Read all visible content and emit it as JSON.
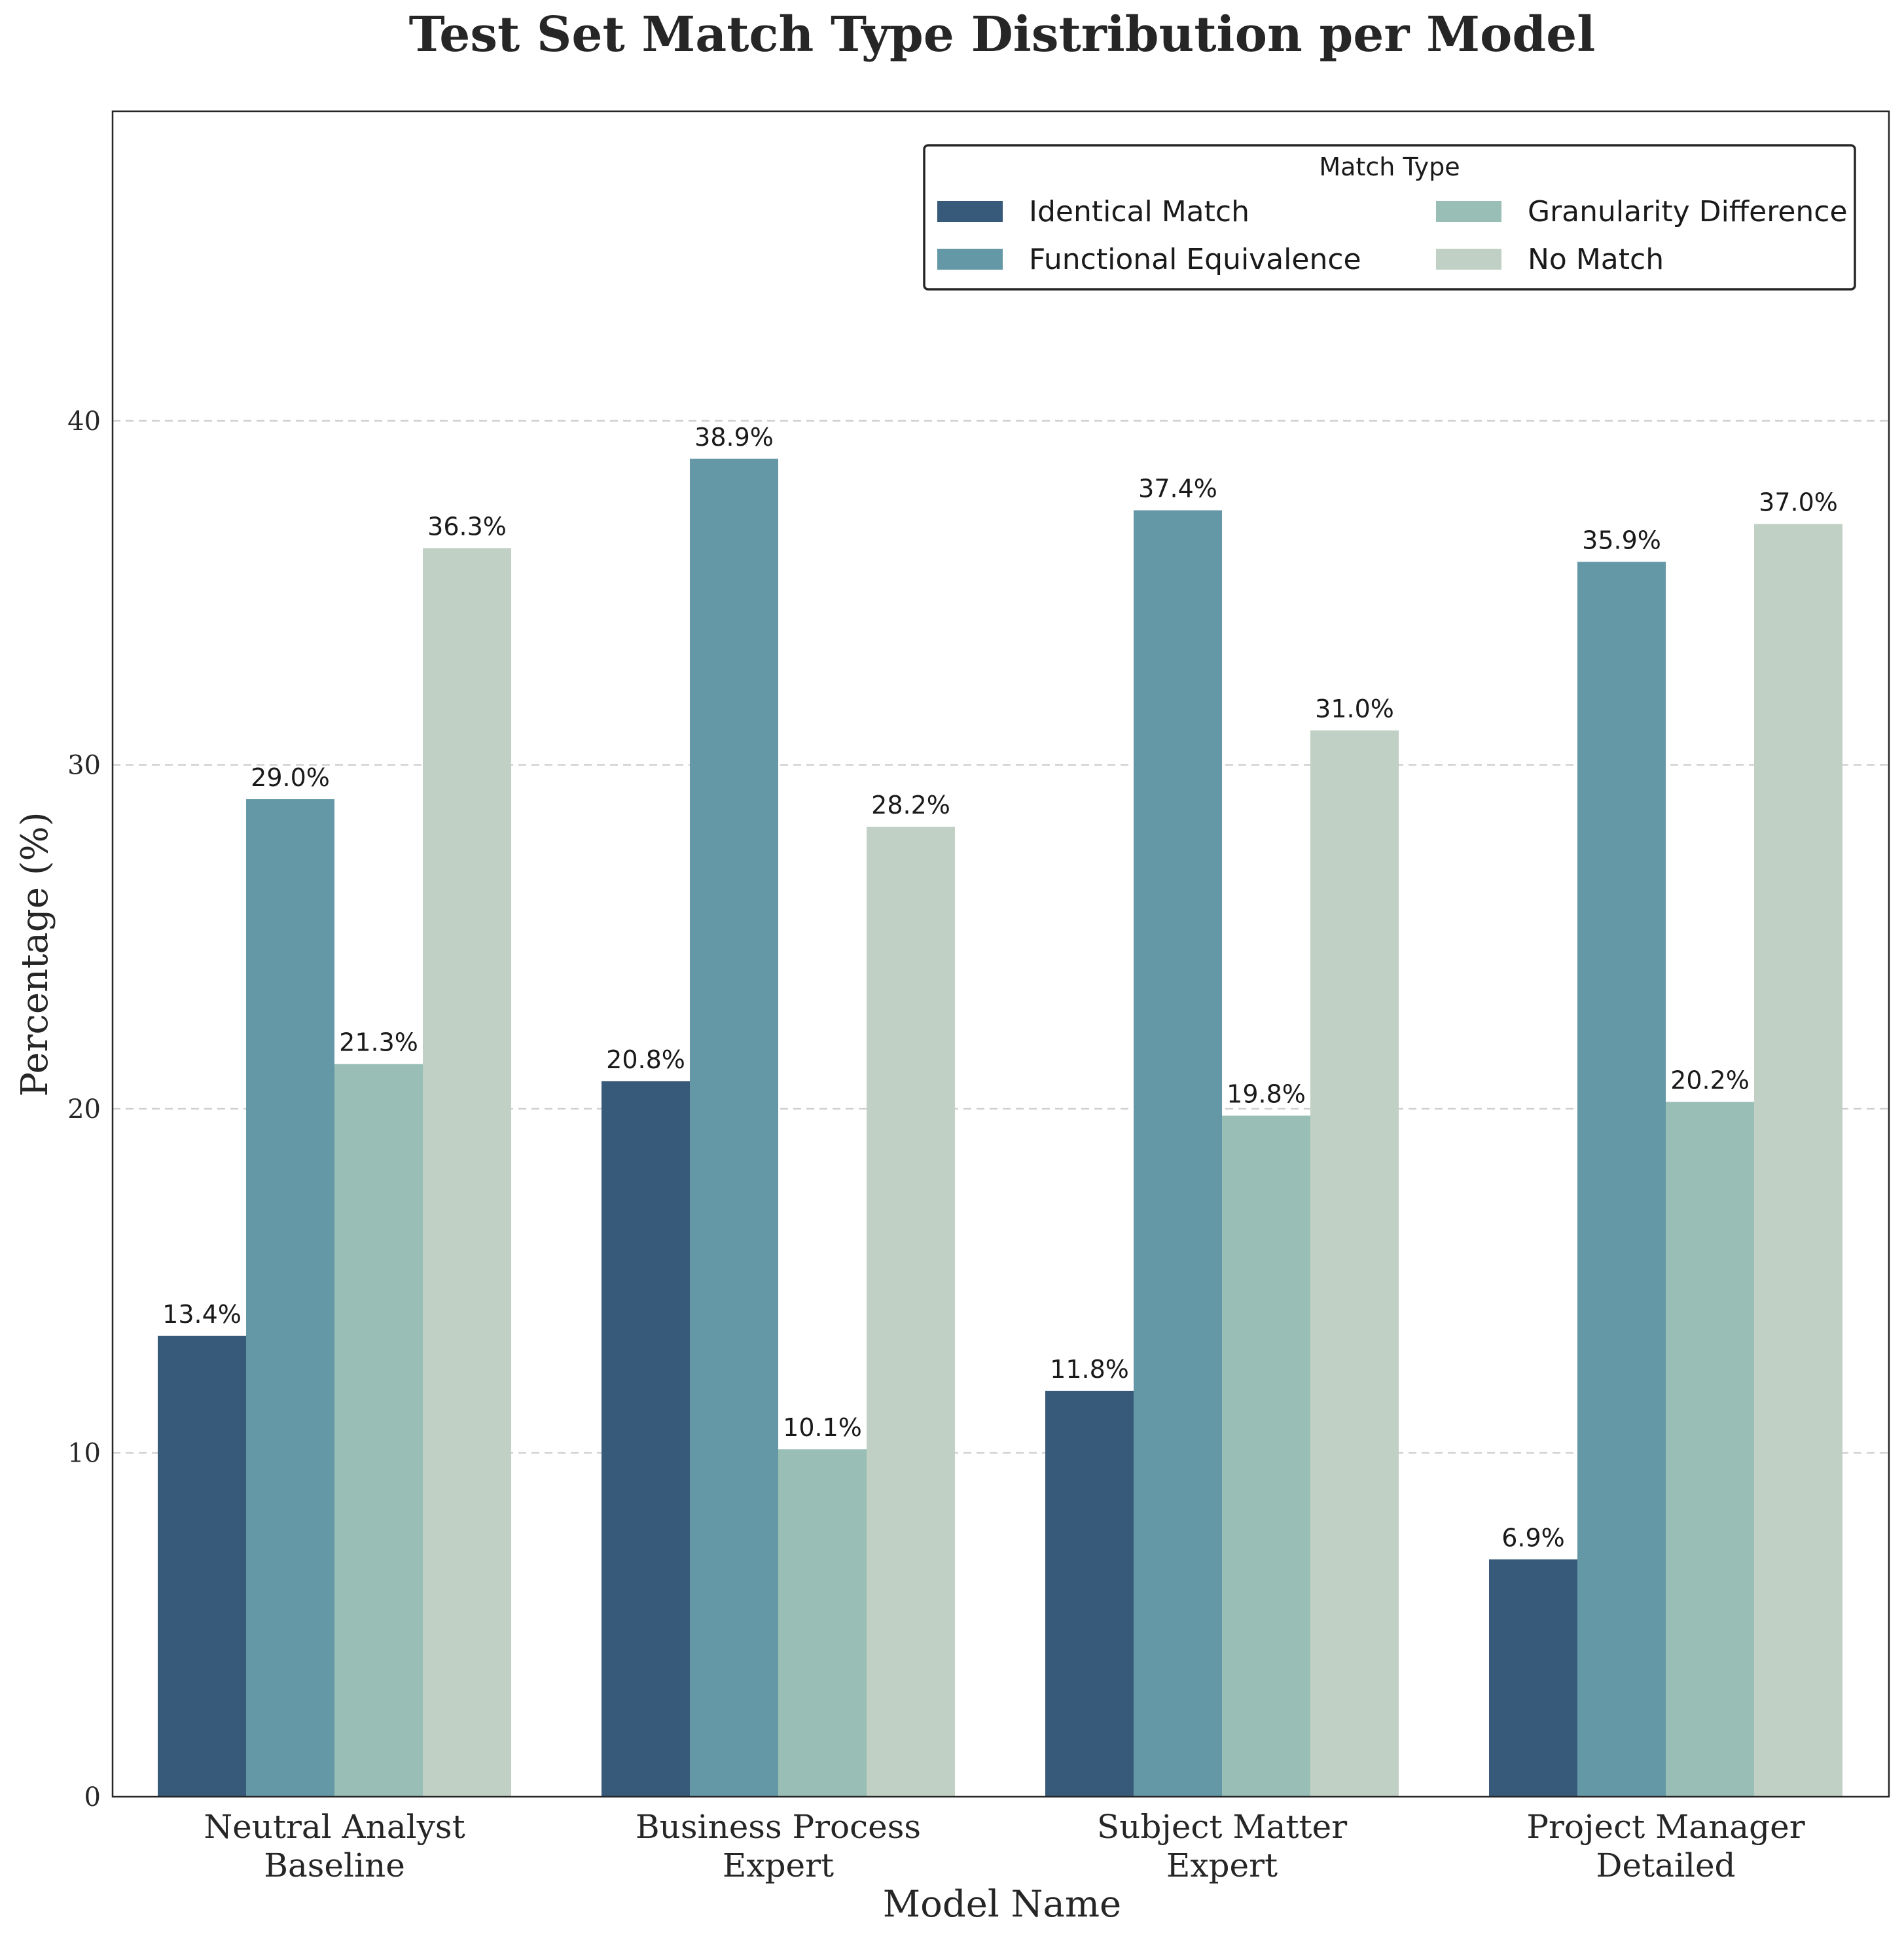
{
  "chart_data": {
    "type": "bar",
    "title": "Test Set Match Type Distribution per Model",
    "xlabel": "Model Name",
    "ylabel": "Percentage (%)",
    "ylim": [
      0,
      49
    ],
    "yticks": [
      0,
      10,
      20,
      30,
      40
    ],
    "grid": "y-dashed",
    "categories": [
      [
        "Neutral Analyst",
        "Baseline"
      ],
      [
        "Business Process",
        "Expert"
      ],
      [
        "Subject Matter",
        "Expert"
      ],
      [
        "Project Manager",
        "Detailed"
      ]
    ],
    "legend": {
      "title": "Match Type",
      "placement": "top-right",
      "columns": 2
    },
    "series": [
      {
        "name": "Identical Match",
        "color": "#375a7b",
        "values": [
          13.4,
          20.8,
          11.8,
          6.9
        ],
        "labels": [
          "13.4%",
          "20.8%",
          "11.8%",
          "6.9%"
        ]
      },
      {
        "name": "Functional Equivalence",
        "color": "#6498a6",
        "values": [
          29.0,
          38.9,
          37.4,
          35.9
        ],
        "labels": [
          "29.0%",
          "38.9%",
          "37.4%",
          "35.9%"
        ]
      },
      {
        "name": "Granularity Difference",
        "color": "#99beb6",
        "values": [
          21.3,
          10.1,
          19.8,
          20.2
        ],
        "labels": [
          "21.3%",
          "10.1%",
          "19.8%",
          "20.2%"
        ]
      },
      {
        "name": "No Match",
        "color": "#c1d0c5",
        "values": [
          36.3,
          28.2,
          31.0,
          37.0
        ],
        "labels": [
          "36.3%",
          "28.2%",
          "31.0%",
          "37.0%"
        ]
      }
    ]
  }
}
